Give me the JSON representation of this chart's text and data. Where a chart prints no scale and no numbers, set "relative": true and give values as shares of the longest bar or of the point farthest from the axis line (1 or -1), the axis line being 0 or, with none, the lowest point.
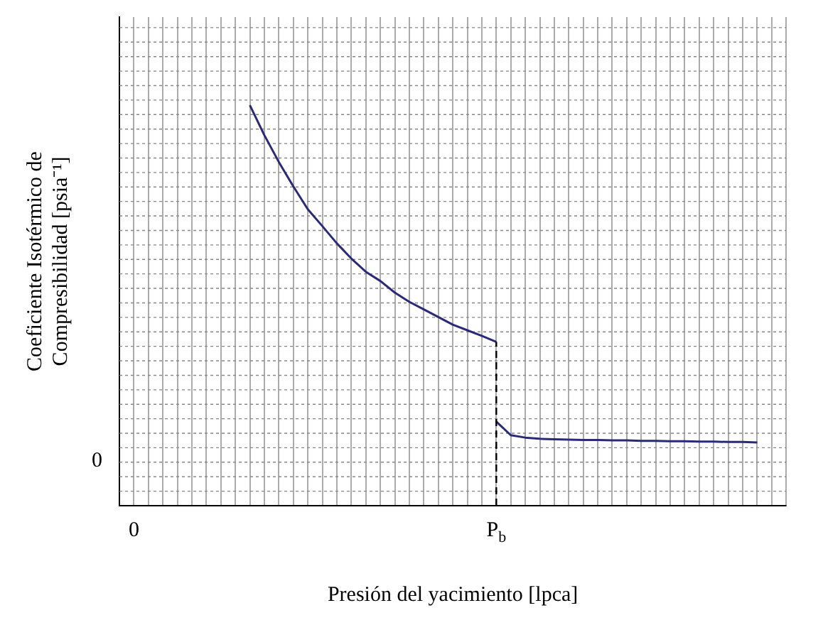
{
  "chart_data": {
    "type": "line",
    "relative": true,
    "xlabel": "Presión del yacimiento [lpca]",
    "ylabel": "Coeficiente Isotérmico de\nCompresibilidad [psia⁻¹]",
    "categories": [
      null,
      "0",
      null,
      null,
      null,
      null,
      null,
      null,
      null,
      null,
      null,
      null,
      null,
      null,
      null,
      null,
      null,
      null,
      null,
      null,
      null,
      null,
      null,
      null,
      null,
      null,
      "P$_{b}$",
      null,
      null,
      null,
      null,
      null,
      null,
      null,
      null,
      null,
      null,
      null,
      null,
      null,
      null,
      null,
      null,
      null,
      null,
      null,
      null
    ],
    "series": [
      {
        "color": "#2b2a78",
        "values": [
          null,
          null,
          null,
          null,
          null,
          null,
          null,
          null,
          null,
          1.0,
          0.925,
          0.858,
          0.797,
          0.74,
          0.698,
          0.655,
          0.617,
          0.584,
          0.561,
          0.532,
          0.509,
          0.49,
          0.471,
          0.452,
          0.438,
          0.424,
          0.409,
          null,
          null,
          null,
          null,
          null,
          null,
          null,
          null,
          null,
          null,
          null,
          null,
          null,
          null,
          null,
          null,
          null,
          null,
          null,
          null
        ]
      },
      {
        "color": "#2b2a78",
        "values": [
          null,
          null,
          null,
          null,
          null,
          null,
          null,
          null,
          null,
          null,
          null,
          null,
          null,
          null,
          null,
          null,
          null,
          null,
          null,
          null,
          null,
          null,
          null,
          null,
          null,
          null,
          0.21,
          0.176,
          0.17,
          0.167,
          0.166,
          0.165,
          0.164,
          0.164,
          0.163,
          0.163,
          0.162,
          0.162,
          0.161,
          0.161,
          0.16,
          0.16,
          0.159,
          0.159,
          0.158,
          null,
          null
        ]
      }
    ],
    "ref_lines": [
      {
        "axis": "x",
        "value": "P$_{b}$",
        "line_style": "dashed",
        "color": "#000000"
      }
    ],
    "annotations": [
      "0"
    ],
    "grid": true,
    "legend": false,
    "marker": "none",
    "line_style": "solid"
  }
}
